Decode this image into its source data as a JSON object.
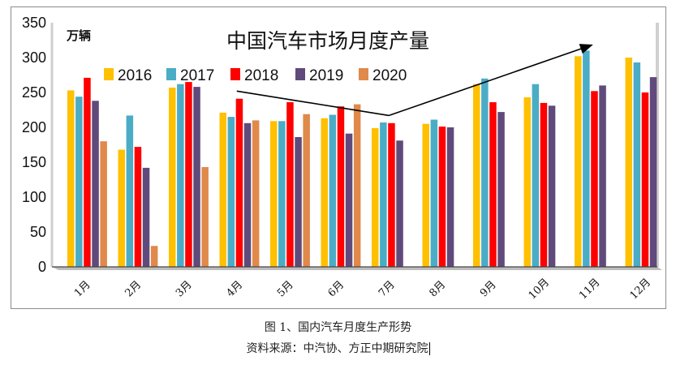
{
  "chart_data": {
    "type": "bar",
    "title": "中国汽车市场月度产量",
    "unit_label": "万辆",
    "xlabel": "",
    "ylabel": "",
    "ylim": [
      0,
      350
    ],
    "yticks": [
      0,
      50,
      100,
      150,
      200,
      250,
      300,
      350
    ],
    "legend_position": "top-left",
    "grid": false,
    "categories": [
      "1月",
      "2月",
      "3月",
      "4月",
      "5月",
      "6月",
      "7月",
      "8月",
      "9月",
      "10月",
      "11月",
      "12月"
    ],
    "series": [
      {
        "name": "2016",
        "color": "#FFC000",
        "values": [
          253,
          168,
          257,
          221,
          209,
          213,
          199,
          205,
          262,
          243,
          302,
          300
        ]
      },
      {
        "name": "2017",
        "color": "#4BACC6",
        "values": [
          244,
          217,
          262,
          215,
          209,
          218,
          207,
          211,
          270,
          262,
          310,
          293
        ]
      },
      {
        "name": "2018",
        "color": "#FF0000",
        "values": [
          271,
          172,
          265,
          241,
          236,
          230,
          206,
          201,
          236,
          235,
          252,
          250
        ]
      },
      {
        "name": "2019",
        "color": "#604A7B",
        "values": [
          238,
          142,
          258,
          206,
          186,
          191,
          181,
          200,
          222,
          231,
          260,
          272
        ]
      },
      {
        "name": "2020",
        "color": "#E0894A",
        "values": [
          180,
          30,
          143,
          210,
          219,
          233,
          null,
          null,
          null,
          null,
          null,
          null
        ]
      }
    ],
    "annotations": [
      {
        "type": "arrow-segment",
        "from": {
          "category": "4月",
          "value": 252
        },
        "to": {
          "category": "7月",
          "value": 217
        }
      },
      {
        "type": "arrow",
        "from": {
          "category": "7月",
          "value": 217
        },
        "to": {
          "category": "11月",
          "value": 318
        }
      }
    ]
  },
  "caption": "图 1、国内汽车月度生产形势",
  "source": "资料来源：中汽协、方正中期研究院"
}
